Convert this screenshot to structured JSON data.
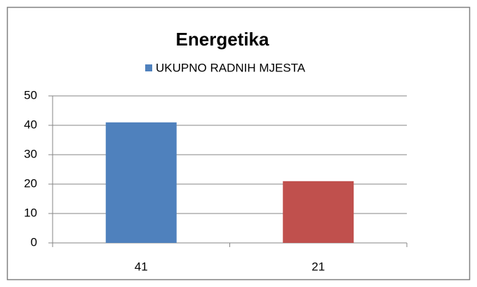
{
  "chart_data": {
    "type": "bar",
    "title": "Energetika",
    "series": [
      {
        "name": "UKUPNO RADNIH MJESTA",
        "color": "#4f81bd",
        "values": [
          41,
          21
        ]
      }
    ],
    "colors": [
      "#4f81bd",
      "#c0504d"
    ],
    "categories": [
      "41",
      "21"
    ],
    "ylim": [
      0,
      50
    ],
    "yticks": [
      0,
      10,
      20,
      30,
      40,
      50
    ],
    "grid": true,
    "legend": "top"
  }
}
